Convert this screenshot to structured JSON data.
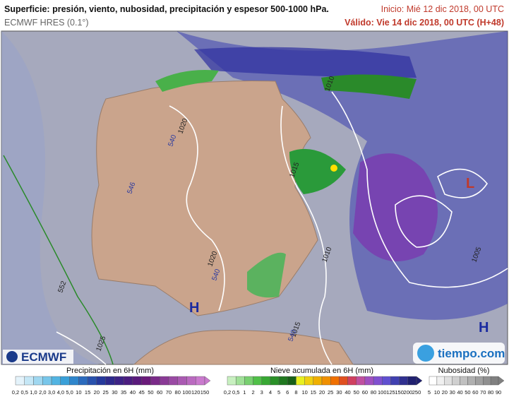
{
  "header": {
    "title": "Superficie: presión, viento, nubosidad, precipitación y espesor 500-1000 hPa.",
    "model": "ECMWF HRES (0.1°)",
    "init": "Inicio: Mié 12 dic 2018, 00 UTC",
    "valid": "Válido: Vie 14 dic 2018, 00 UTC (H+48)"
  },
  "map": {
    "labels": [
      "1020",
      "540",
      "546",
      "1015",
      "1020",
      "540",
      "1010",
      "1010",
      "1015",
      "540",
      "1005",
      "552",
      "1025"
    ],
    "pressure_centers": [
      "H",
      "H",
      "L"
    ]
  },
  "logos": {
    "left": "ECMWF",
    "right": "tiempo.com"
  },
  "legends": [
    {
      "title": "Precipitación en 6H (mm)",
      "labels": [
        "0,2",
        "0,5",
        "1,0",
        "2,0",
        "3,0",
        "4,0",
        "5,0",
        "10",
        "15",
        "20",
        "25",
        "30",
        "35",
        "40",
        "45",
        "50",
        "60",
        "70",
        "80",
        "100",
        "120",
        "150"
      ]
    },
    {
      "title": "Nieve acumulada en 6H (mm)",
      "labels": [
        "0,2",
        "0,5",
        "1",
        "2",
        "3",
        "4",
        "5",
        "6",
        "8",
        "10",
        "15",
        "20",
        "25",
        "30",
        "40",
        "50",
        "60",
        "80",
        "100",
        "125",
        "150",
        "200",
        "250"
      ]
    },
    {
      "title": "Nubosidad (%)",
      "labels": [
        "5",
        "10",
        "20",
        "30",
        "40",
        "50",
        "60",
        "70",
        "80",
        "90"
      ]
    }
  ]
}
